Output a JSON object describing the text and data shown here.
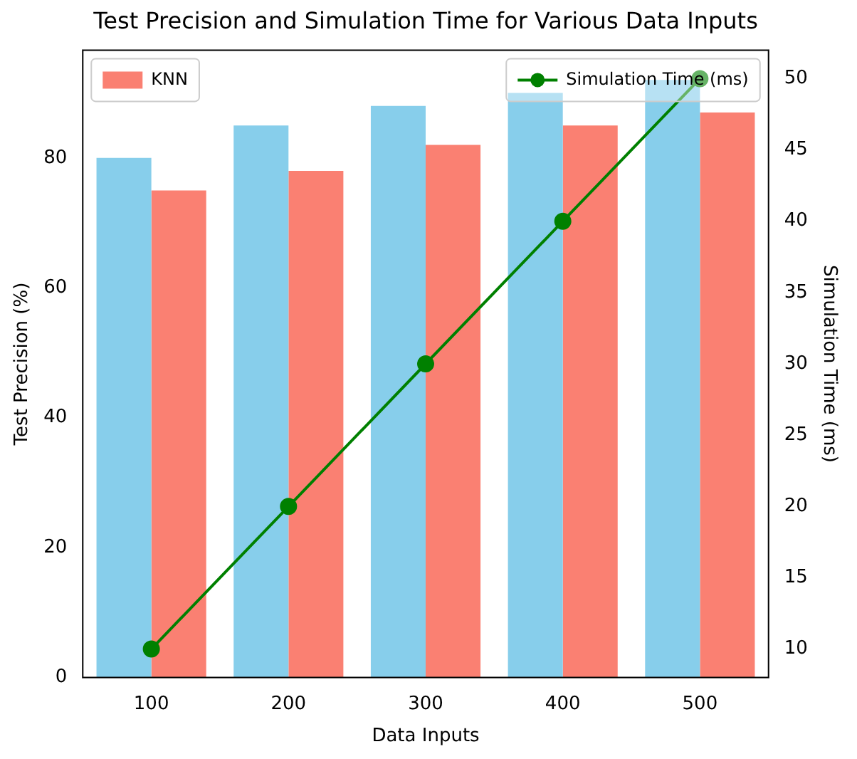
{
  "chart_data": {
    "type": "bar",
    "title": "Test Precision and Simulation Time for Various Data Inputs",
    "xlabel": "Data Inputs",
    "ylabel": "Test Precision (%)",
    "y2label": "Simulation Time (ms)",
    "categories": [
      "100",
      "200",
      "300",
      "400",
      "500"
    ],
    "series": [
      {
        "color": "#87ceeb",
        "values": [
          80,
          85,
          88,
          90,
          92
        ]
      },
      {
        "name": "KNN",
        "color": "#fa8072",
        "values": [
          75,
          78,
          82,
          85,
          87
        ]
      },
      {
        "name": "Simulation Time (ms)",
        "type": "line",
        "axis": "y2",
        "color": "#008000",
        "values": [
          10,
          20,
          30,
          40,
          50
        ],
        "marker": "circle"
      }
    ],
    "ylim": [
      0,
      96.6
    ],
    "yticks": [
      0,
      20,
      40,
      60,
      80
    ],
    "y2lim": [
      8,
      52
    ],
    "y2ticks": [
      10,
      15,
      20,
      25,
      30,
      35,
      40,
      45,
      50
    ],
    "legend": "top left",
    "grid": false
  }
}
